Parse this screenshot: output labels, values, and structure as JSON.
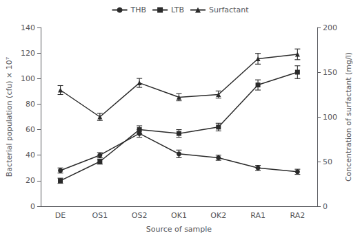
{
  "chart_data": {
    "type": "line",
    "xlabel": "Source of sample",
    "ylabel": "Bacterial population (cfu) × 10⁷",
    "y2label": "Concentration of surfactant (mg/l)",
    "categories": [
      "DE",
      "OS1",
      "OS2",
      "OK1",
      "OK2",
      "RA1",
      "RA2"
    ],
    "series": [
      {
        "name": "THB",
        "color": "#2a2a2a",
        "marker": "circle",
        "values": [
          28,
          40,
          57,
          41,
          38,
          30,
          27
        ],
        "errors": [
          2,
          2,
          3,
          3,
          2,
          2,
          2
        ]
      },
      {
        "name": "LTB",
        "color": "#2a2a2a",
        "marker": "square",
        "values": [
          20,
          35,
          60,
          57,
          62,
          95,
          105
        ],
        "errors": [
          2,
          2,
          3,
          3,
          3,
          4,
          5
        ]
      },
      {
        "name": "Surfactant",
        "color": "#2a2a2a",
        "marker": "triangle",
        "axis": "y2",
        "values": [
          130,
          100,
          138,
          122,
          125,
          165,
          170
        ],
        "errors": [
          5,
          4,
          5,
          4,
          4,
          6,
          6
        ]
      }
    ],
    "ylim": [
      0,
      140
    ],
    "yticks": [
      0,
      20,
      40,
      60,
      80,
      100,
      120,
      140
    ],
    "y2lim": [
      0,
      200
    ],
    "y2ticks": [
      0,
      50,
      100,
      150,
      200
    ],
    "grid": false,
    "legend": "top"
  }
}
